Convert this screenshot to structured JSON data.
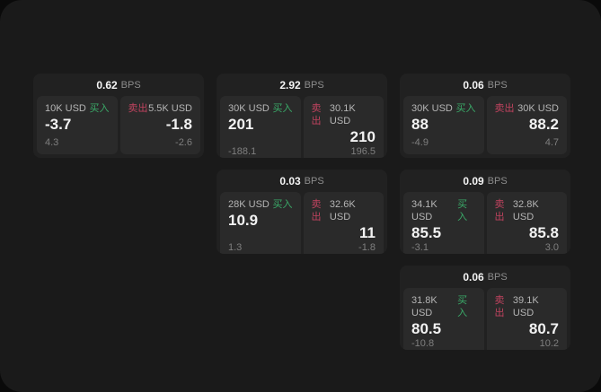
{
  "labels": {
    "buy": "买入",
    "sell": "卖出",
    "bps": "BPS"
  },
  "colors": {
    "window_bg": "#1a1a1a",
    "card_bg": "#212121",
    "panel_bg": "#2a2a2a",
    "buy_accent": "#3aa968",
    "sell_accent": "#c0435f"
  },
  "cards": [
    {
      "bps": "0.62",
      "buy": {
        "amount": "10K USD",
        "price": "-3.7",
        "delta": "4.3"
      },
      "sell": {
        "amount": "5.5K USD",
        "price": "-1.8",
        "delta": "-2.6"
      }
    },
    {
      "bps": "2.92",
      "buy": {
        "amount": "30K USD",
        "price": "201",
        "delta": "-188.1"
      },
      "sell": {
        "amount": "30.1K USD",
        "price": "210",
        "delta": "196.5"
      }
    },
    {
      "bps": "0.06",
      "buy": {
        "amount": "30K USD",
        "price": "88",
        "delta": "-4.9"
      },
      "sell": {
        "amount": "30K USD",
        "price": "88.2",
        "delta": "4.7"
      }
    },
    {
      "bps": "0.03",
      "buy": {
        "amount": "28K USD",
        "price": "10.9",
        "delta": "1.3"
      },
      "sell": {
        "amount": "32.6K USD",
        "price": "11",
        "delta": "-1.8"
      }
    },
    {
      "bps": "0.09",
      "buy": {
        "amount": "34.1K USD",
        "price": "85.5",
        "delta": "-3.1"
      },
      "sell": {
        "amount": "32.8K USD",
        "price": "85.8",
        "delta": "3.0"
      }
    },
    {
      "bps": "0.06",
      "buy": {
        "amount": "31.8K USD",
        "price": "80.5",
        "delta": "-10.8"
      },
      "sell": {
        "amount": "39.1K USD",
        "price": "80.7",
        "delta": "10.2"
      }
    }
  ]
}
